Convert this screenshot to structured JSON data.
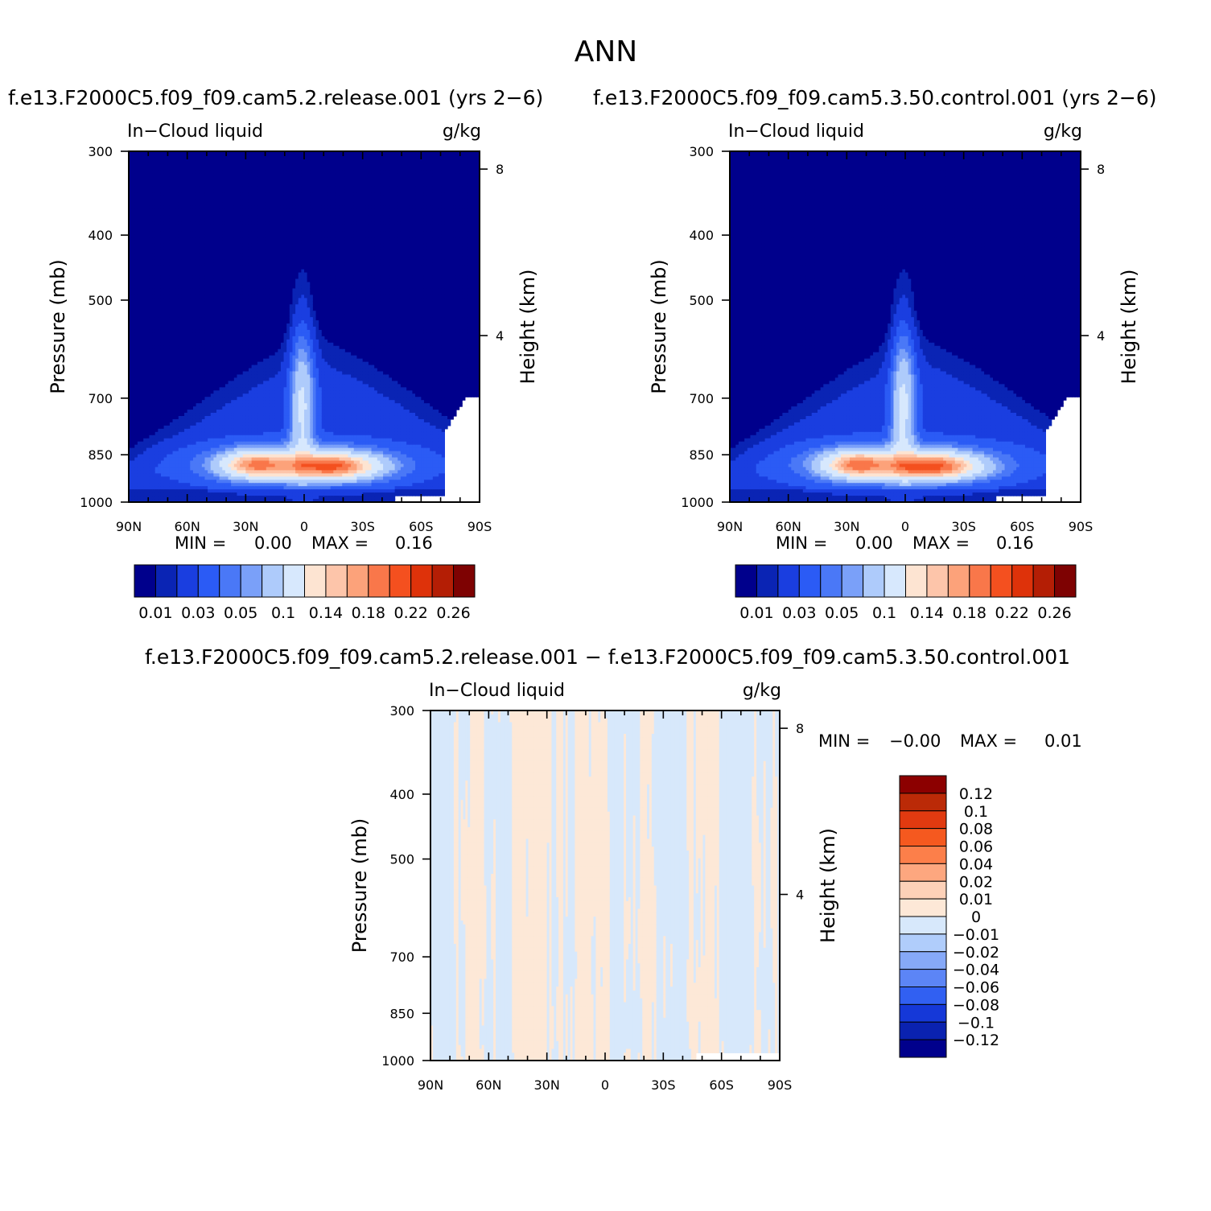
{
  "figure": {
    "title": "ANN",
    "difference_title": "f.e13.F2000C5.f09_f09.cam5.2.release.001 − f.e13.F2000C5.f09_f09.cam5.3.50.control.001"
  },
  "chart_data": [
    {
      "type": "heatmap",
      "title": "f.e13.F2000C5.f09_f09.cam5.2.release.001  (yrs  2−6)",
      "left_label": "In−Cloud  liquid",
      "right_label": "g/kg",
      "xlabel": "",
      "ylabel": "Pressure  (mb)",
      "y2label": "Height  (km)",
      "x_ticks": [
        "90N",
        "60N",
        "30N",
        "0",
        "30S",
        "60S",
        "90S"
      ],
      "x_range": [
        90,
        -90
      ],
      "y_ticks": [
        "300",
        "400",
        "500",
        "700",
        "850",
        "1000"
      ],
      "y_range": [
        300,
        1000
      ],
      "y_scale": "log",
      "y2_ticks": [
        "8",
        "4"
      ],
      "stats": {
        "min_label": "MIN  =",
        "min": "0.00",
        "max_label": "MAX  =",
        "max": "0.16"
      },
      "colorbar": {
        "orientation": "horizontal",
        "labels": [
          "0.01",
          "0.03",
          "0.05",
          "0.1",
          "0.14",
          "0.18",
          "0.22",
          "0.26"
        ],
        "colors": [
          "#00008c",
          "#0a24b4",
          "#1a3ee0",
          "#2b5bf5",
          "#4a78f7",
          "#7aa0f9",
          "#aecbfb",
          "#d7e8fd",
          "#fde4d2",
          "#fdc5aa",
          "#fca27a",
          "#f9774a",
          "#f4501f",
          "#de320a",
          "#b41e05",
          "#7e0202"
        ]
      },
      "field_peaks": [
        {
          "lat": 25,
          "p": 880,
          "value": 0.16
        },
        {
          "lat": -15,
          "p": 885,
          "value": 0.14
        },
        {
          "lat": 0,
          "p": 640,
          "value": 0.08
        }
      ]
    },
    {
      "type": "heatmap",
      "title": "f.e13.F2000C5.f09_f09.cam5.3.50.control.001  (yrs  2−6)",
      "left_label": "In−Cloud  liquid",
      "right_label": "g/kg",
      "xlabel": "",
      "ylabel": "Pressure  (mb)",
      "y2label": "Height  (km)",
      "x_ticks": [
        "90N",
        "60N",
        "30N",
        "0",
        "30S",
        "60S",
        "90S"
      ],
      "x_range": [
        90,
        -90
      ],
      "y_ticks": [
        "300",
        "400",
        "500",
        "700",
        "850",
        "1000"
      ],
      "y_range": [
        300,
        1000
      ],
      "y_scale": "log",
      "y2_ticks": [
        "8",
        "4"
      ],
      "stats": {
        "min_label": "MIN  =",
        "min": "0.00",
        "max_label": "MAX  =",
        "max": "0.16"
      },
      "colorbar": {
        "orientation": "horizontal",
        "labels": [
          "0.01",
          "0.03",
          "0.05",
          "0.1",
          "0.14",
          "0.18",
          "0.22",
          "0.26"
        ],
        "colors": [
          "#00008c",
          "#0a24b4",
          "#1a3ee0",
          "#2b5bf5",
          "#4a78f7",
          "#7aa0f9",
          "#aecbfb",
          "#d7e8fd",
          "#fde4d2",
          "#fdc5aa",
          "#fca27a",
          "#f9774a",
          "#f4501f",
          "#de320a",
          "#b41e05",
          "#7e0202"
        ]
      },
      "field_peaks": [
        {
          "lat": 25,
          "p": 880,
          "value": 0.15
        },
        {
          "lat": -15,
          "p": 885,
          "value": 0.15
        },
        {
          "lat": 0,
          "p": 640,
          "value": 0.08
        }
      ]
    },
    {
      "type": "heatmap",
      "title": "",
      "left_label": "In−Cloud  liquid",
      "right_label": "g/kg",
      "xlabel": "",
      "ylabel": "Pressure  (mb)",
      "y2label": "Height  (km)",
      "x_ticks": [
        "90N",
        "60N",
        "30N",
        "0",
        "30S",
        "60S",
        "90S"
      ],
      "x_range": [
        90,
        -90
      ],
      "y_ticks": [
        "300",
        "400",
        "500",
        "700",
        "850",
        "1000"
      ],
      "y_range": [
        300,
        1000
      ],
      "y_scale": "log",
      "y2_ticks": [
        "8",
        "4"
      ],
      "stats": {
        "min_label": "MIN  =",
        "min": "−0.00",
        "max_label": "MAX  =",
        "max": "0.01"
      },
      "colorbar": {
        "orientation": "vertical",
        "labels": [
          "0.12",
          "0.1",
          "0.08",
          "0.06",
          "0.04",
          "0.02",
          "0.01",
          "0",
          "−0.01",
          "−0.02",
          "−0.04",
          "−0.06",
          "−0.08",
          "−0.1",
          "−0.12"
        ],
        "colors": [
          "#8c0000",
          "#bb2a07",
          "#e13a10",
          "#f5591f",
          "#fc7f4a",
          "#fda77f",
          "#fdd1b8",
          "#fde8d7",
          "#d7e8fb",
          "#b0cdfb",
          "#86a9f8",
          "#5c85f6",
          "#3160f2",
          "#1538d8",
          "#0a22b0",
          "#00008c"
        ]
      },
      "field_values": {
        "dominant_positive": "0 to 0.01",
        "dominant_negative": "−0.01 to 0"
      }
    }
  ]
}
